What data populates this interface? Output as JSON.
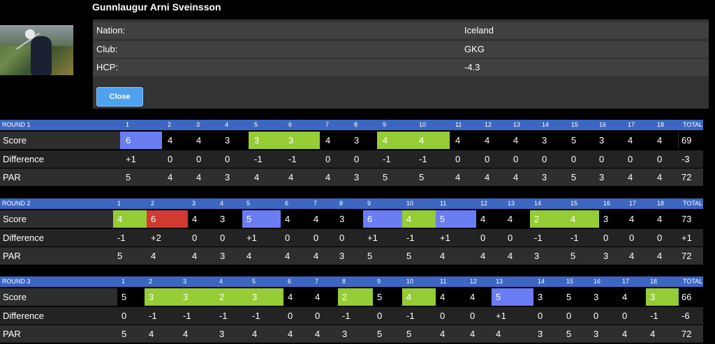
{
  "player": {
    "name": "Gunnlaugur Arni Sveinsson",
    "nation_label": "Nation:",
    "nation": "Iceland",
    "club_label": "Club:",
    "club": "GKG",
    "hcp_label": "HCP:",
    "hcp": "-4.3",
    "close_label": "Close"
  },
  "colors": {
    "header": "#3c66c2",
    "eagle": "#d03a30",
    "bogey": "#6b7df2",
    "birdie": "#96cc36",
    "par": "#000000",
    "row_light": "#2e2e2e",
    "row_dark": "#232323"
  },
  "rounds": [
    {
      "title": "ROUND 1",
      "holes": [
        "1",
        "2",
        "3",
        "4",
        "5",
        "6",
        "7",
        "8",
        "9",
        "10",
        "11",
        "12",
        "13",
        "14",
        "15",
        "16",
        "17",
        "18"
      ],
      "total_label": "TOTAL",
      "score_label": "Score",
      "scores": [
        "6",
        "4",
        "4",
        "3",
        "3",
        "3",
        "4",
        "3",
        "4",
        "4",
        "4",
        "4",
        "4",
        "3",
        "5",
        "3",
        "4",
        "4"
      ],
      "score_status": [
        "bogey",
        "par",
        "par",
        "par",
        "birdie",
        "birdie",
        "par",
        "par",
        "birdie",
        "birdie",
        "par",
        "par",
        "par",
        "par",
        "par",
        "par",
        "par",
        "par"
      ],
      "score_total": "69",
      "diff_label": "Difference",
      "diffs": [
        "+1",
        "0",
        "0",
        "0",
        "-1",
        "-1",
        "0",
        "0",
        "-1",
        "-1",
        "0",
        "0",
        "0",
        "0",
        "0",
        "0",
        "0",
        "0"
      ],
      "diff_total": "-3",
      "par_label": "PAR",
      "pars": [
        "5",
        "4",
        "4",
        "3",
        "4",
        "4",
        "4",
        "3",
        "5",
        "5",
        "4",
        "4",
        "4",
        "3",
        "5",
        "3",
        "4",
        "4"
      ],
      "par_total": "72"
    },
    {
      "title": "ROUND 2",
      "holes": [
        "1",
        "2",
        "3",
        "4",
        "5",
        "6",
        "7",
        "8",
        "9",
        "10",
        "11",
        "12",
        "13",
        "14",
        "15",
        "16",
        "17",
        "18"
      ],
      "total_label": "TOTAL",
      "score_label": "Score",
      "scores": [
        "4",
        "6",
        "4",
        "3",
        "5",
        "4",
        "4",
        "3",
        "6",
        "4",
        "5",
        "4",
        "4",
        "2",
        "4",
        "3",
        "4",
        "4"
      ],
      "score_status": [
        "birdie",
        "eagle",
        "par",
        "par",
        "bogey",
        "par",
        "par",
        "par",
        "bogey",
        "birdie",
        "bogey",
        "par",
        "par",
        "birdie",
        "birdie",
        "par",
        "par",
        "par"
      ],
      "score_total": "73",
      "diff_label": "Difference",
      "diffs": [
        "-1",
        "+2",
        "0",
        "0",
        "+1",
        "0",
        "0",
        "0",
        "+1",
        "-1",
        "+1",
        "0",
        "0",
        "-1",
        "-1",
        "0",
        "0",
        "0"
      ],
      "diff_total": "+1",
      "par_label": "PAR",
      "pars": [
        "5",
        "4",
        "4",
        "3",
        "4",
        "4",
        "4",
        "3",
        "5",
        "5",
        "4",
        "4",
        "4",
        "3",
        "5",
        "3",
        "4",
        "4"
      ],
      "par_total": "72"
    },
    {
      "title": "ROUND 3",
      "holes": [
        "1",
        "2",
        "3",
        "4",
        "5",
        "6",
        "7",
        "8",
        "9",
        "10",
        "11",
        "12",
        "13",
        "14",
        "15",
        "16",
        "17",
        "18"
      ],
      "total_label": "TOTAL",
      "score_label": "Score",
      "scores": [
        "5",
        "3",
        "3",
        "2",
        "3",
        "4",
        "4",
        "2",
        "5",
        "4",
        "4",
        "4",
        "5",
        "3",
        "5",
        "3",
        "4",
        "3"
      ],
      "score_status": [
        "par",
        "birdie",
        "birdie",
        "birdie",
        "birdie",
        "par",
        "par",
        "birdie",
        "par",
        "birdie",
        "par",
        "par",
        "bogey",
        "par",
        "par",
        "par",
        "par",
        "birdie"
      ],
      "score_total": "66",
      "diff_label": "Difference",
      "diffs": [
        "0",
        "-1",
        "-1",
        "-1",
        "-1",
        "0",
        "0",
        "-1",
        "0",
        "-1",
        "0",
        "0",
        "+1",
        "0",
        "0",
        "0",
        "0",
        "-1"
      ],
      "diff_total": "-6",
      "par_label": "PAR",
      "pars": [
        "5",
        "4",
        "4",
        "3",
        "4",
        "4",
        "4",
        "3",
        "5",
        "5",
        "4",
        "4",
        "4",
        "3",
        "5",
        "3",
        "4",
        "4"
      ],
      "par_total": "72"
    }
  ]
}
